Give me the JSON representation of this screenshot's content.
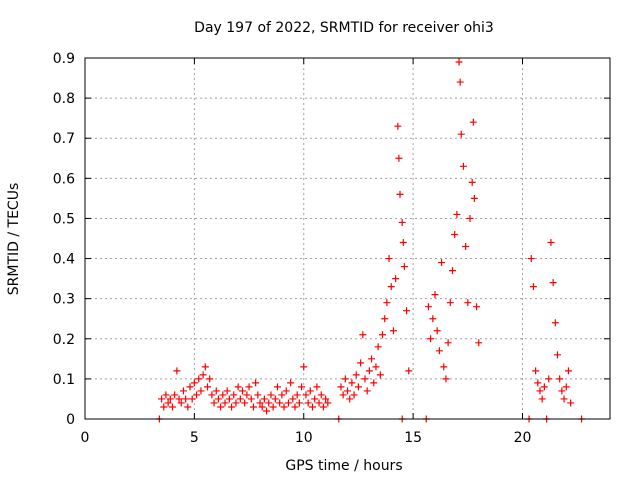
{
  "chart_data": {
    "type": "scatter",
    "title": "Day 197 of 2022, SRMTID for receiver ohi3",
    "xlabel": "GPS time / hours",
    "ylabel": "SRMTID / TECUs",
    "xlim": [
      0,
      24
    ],
    "ylim": [
      0,
      0.9
    ],
    "xticks": [
      0,
      5,
      10,
      15,
      20
    ],
    "xtick_labels": [
      "0",
      "5",
      "10",
      "15",
      "20"
    ],
    "yticks": [
      0,
      0.1,
      0.2,
      0.3,
      0.4,
      0.5,
      0.6,
      0.7,
      0.8,
      0.9
    ],
    "ytick_labels": [
      "0",
      "0.1",
      "0.2",
      "0.3",
      "0.4",
      "0.5",
      "0.6",
      "0.7",
      "0.8",
      "0.9"
    ],
    "grid": true,
    "marker": "+",
    "color": "#ff0000",
    "series": [
      {
        "name": "SRMTID",
        "points": [
          [
            3.4,
            0.0
          ],
          [
            3.5,
            0.05
          ],
          [
            3.6,
            0.03
          ],
          [
            3.7,
            0.06
          ],
          [
            3.8,
            0.04
          ],
          [
            3.9,
            0.05
          ],
          [
            4.0,
            0.03
          ],
          [
            4.1,
            0.06
          ],
          [
            4.2,
            0.12
          ],
          [
            4.3,
            0.05
          ],
          [
            4.4,
            0.04
          ],
          [
            4.5,
            0.07
          ],
          [
            4.6,
            0.05
          ],
          [
            4.7,
            0.03
          ],
          [
            4.8,
            0.08
          ],
          [
            4.9,
            0.05
          ],
          [
            5.0,
            0.09
          ],
          [
            5.1,
            0.06
          ],
          [
            5.2,
            0.1
          ],
          [
            5.3,
            0.07
          ],
          [
            5.4,
            0.11
          ],
          [
            5.5,
            0.13
          ],
          [
            5.6,
            0.08
          ],
          [
            5.7,
            0.1
          ],
          [
            5.8,
            0.06
          ],
          [
            5.9,
            0.04
          ],
          [
            6.0,
            0.07
          ],
          [
            6.1,
            0.05
          ],
          [
            6.2,
            0.03
          ],
          [
            6.3,
            0.06
          ],
          [
            6.4,
            0.04
          ],
          [
            6.5,
            0.07
          ],
          [
            6.6,
            0.05
          ],
          [
            6.7,
            0.03
          ],
          [
            6.8,
            0.06
          ],
          [
            6.9,
            0.04
          ],
          [
            7.0,
            0.08
          ],
          [
            7.1,
            0.05
          ],
          [
            7.2,
            0.07
          ],
          [
            7.3,
            0.04
          ],
          [
            7.4,
            0.06
          ],
          [
            7.5,
            0.08
          ],
          [
            7.6,
            0.05
          ],
          [
            7.7,
            0.03
          ],
          [
            7.8,
            0.09
          ],
          [
            7.9,
            0.06
          ],
          [
            8.0,
            0.04
          ],
          [
            8.1,
            0.03
          ],
          [
            8.2,
            0.05
          ],
          [
            8.3,
            0.02
          ],
          [
            8.4,
            0.04
          ],
          [
            8.5,
            0.06
          ],
          [
            8.6,
            0.03
          ],
          [
            8.7,
            0.05
          ],
          [
            8.8,
            0.08
          ],
          [
            8.9,
            0.04
          ],
          [
            9.0,
            0.06
          ],
          [
            9.1,
            0.03
          ],
          [
            9.2,
            0.07
          ],
          [
            9.3,
            0.04
          ],
          [
            9.4,
            0.09
          ],
          [
            9.5,
            0.05
          ],
          [
            9.6,
            0.03
          ],
          [
            9.7,
            0.06
          ],
          [
            9.8,
            0.04
          ],
          [
            9.9,
            0.08
          ],
          [
            10.0,
            0.13
          ],
          [
            10.1,
            0.06
          ],
          [
            10.2,
            0.04
          ],
          [
            10.3,
            0.07
          ],
          [
            10.4,
            0.03
          ],
          [
            10.5,
            0.05
          ],
          [
            10.6,
            0.08
          ],
          [
            10.7,
            0.04
          ],
          [
            10.8,
            0.06
          ],
          [
            10.9,
            0.03
          ],
          [
            11.0,
            0.05
          ],
          [
            11.1,
            0.04
          ],
          [
            11.6,
            0.0
          ],
          [
            11.7,
            0.08
          ],
          [
            11.8,
            0.06
          ],
          [
            11.9,
            0.1
          ],
          [
            12.0,
            0.07
          ],
          [
            12.1,
            0.05
          ],
          [
            12.2,
            0.09
          ],
          [
            12.3,
            0.06
          ],
          [
            12.4,
            0.11
          ],
          [
            12.5,
            0.08
          ],
          [
            12.6,
            0.14
          ],
          [
            12.7,
            0.21
          ],
          [
            12.8,
            0.1
          ],
          [
            12.9,
            0.07
          ],
          [
            13.0,
            0.12
          ],
          [
            13.1,
            0.15
          ],
          [
            13.2,
            0.09
          ],
          [
            13.3,
            0.13
          ],
          [
            13.4,
            0.18
          ],
          [
            13.5,
            0.11
          ],
          [
            13.6,
            0.21
          ],
          [
            13.7,
            0.25
          ],
          [
            13.8,
            0.29
          ],
          [
            13.9,
            0.4
          ],
          [
            14.0,
            0.33
          ],
          [
            14.1,
            0.22
          ],
          [
            14.2,
            0.35
          ],
          [
            14.3,
            0.73
          ],
          [
            14.35,
            0.65
          ],
          [
            14.4,
            0.56
          ],
          [
            14.5,
            0.49
          ],
          [
            14.55,
            0.44
          ],
          [
            14.6,
            0.38
          ],
          [
            14.7,
            0.27
          ],
          [
            14.8,
            0.12
          ],
          [
            14.5,
            0.0
          ],
          [
            15.6,
            0.0
          ],
          [
            15.7,
            0.28
          ],
          [
            15.8,
            0.2
          ],
          [
            15.9,
            0.25
          ],
          [
            16.0,
            0.31
          ],
          [
            16.1,
            0.22
          ],
          [
            16.2,
            0.17
          ],
          [
            16.3,
            0.39
          ],
          [
            16.4,
            0.13
          ],
          [
            16.5,
            0.1
          ],
          [
            16.6,
            0.19
          ],
          [
            16.7,
            0.29
          ],
          [
            16.8,
            0.37
          ],
          [
            16.9,
            0.46
          ],
          [
            17.0,
            0.51
          ],
          [
            17.1,
            0.89
          ],
          [
            17.15,
            0.84
          ],
          [
            17.2,
            0.71
          ],
          [
            17.3,
            0.63
          ],
          [
            17.4,
            0.43
          ],
          [
            17.5,
            0.29
          ],
          [
            17.6,
            0.5
          ],
          [
            17.7,
            0.59
          ],
          [
            17.75,
            0.74
          ],
          [
            17.8,
            0.55
          ],
          [
            17.9,
            0.28
          ],
          [
            18.0,
            0.19
          ],
          [
            20.3,
            0.0
          ],
          [
            20.4,
            0.4
          ],
          [
            20.5,
            0.33
          ],
          [
            20.6,
            0.12
          ],
          [
            20.7,
            0.09
          ],
          [
            20.8,
            0.07
          ],
          [
            20.9,
            0.05
          ],
          [
            21.0,
            0.08
          ],
          [
            21.1,
            0.0
          ],
          [
            21.2,
            0.1
          ],
          [
            21.3,
            0.44
          ],
          [
            21.4,
            0.34
          ],
          [
            21.5,
            0.24
          ],
          [
            21.6,
            0.16
          ],
          [
            21.7,
            0.1
          ],
          [
            21.8,
            0.07
          ],
          [
            21.9,
            0.05
          ],
          [
            22.0,
            0.08
          ],
          [
            22.1,
            0.12
          ],
          [
            22.2,
            0.04
          ],
          [
            22.7,
            0.0
          ]
        ]
      }
    ]
  }
}
